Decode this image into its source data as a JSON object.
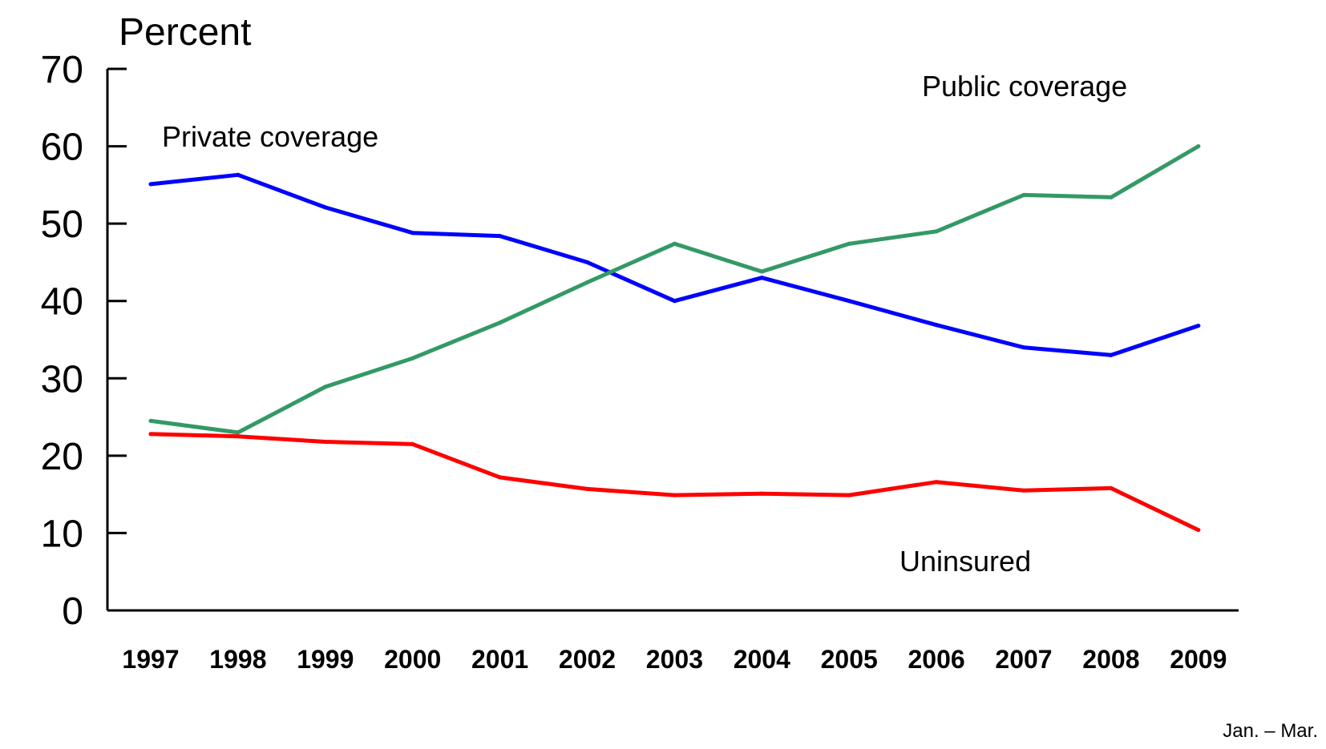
{
  "chart_data": {
    "type": "line",
    "title": "",
    "ylabel": "Percent",
    "xlabel": "",
    "ylim": [
      0,
      70
    ],
    "yticks": [
      0,
      10,
      20,
      30,
      40,
      50,
      60,
      70
    ],
    "categories": [
      "1997",
      "1998",
      "1999",
      "2000",
      "2001",
      "2002",
      "2003",
      "2004",
      "2005",
      "2006",
      "2007",
      "2008",
      "2009"
    ],
    "x_note": "Jan. – Mar.",
    "grid": false,
    "series": [
      {
        "name": "Private coverage",
        "color": "#0000ff",
        "values": [
          55.1,
          56.3,
          52.1,
          48.8,
          48.4,
          45.0,
          40.0,
          43.0,
          40.0,
          36.9,
          34.0,
          33.0,
          36.8
        ]
      },
      {
        "name": "Public coverage",
        "color": "#339966",
        "values": [
          24.5,
          23.0,
          28.9,
          32.6,
          37.2,
          42.4,
          47.4,
          43.8,
          47.4,
          49.0,
          53.7,
          53.4,
          60.0
        ]
      },
      {
        "name": "Uninsured",
        "color": "#ff0000",
        "values": [
          22.8,
          22.5,
          21.8,
          21.5,
          17.2,
          15.7,
          14.9,
          15.1,
          14.9,
          16.6,
          15.5,
          15.8,
          10.4
        ]
      }
    ]
  }
}
